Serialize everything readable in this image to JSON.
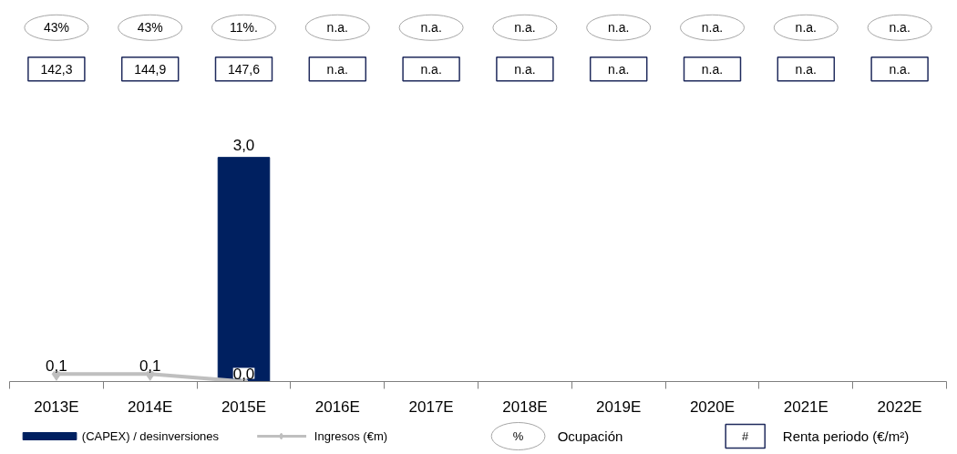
{
  "chart_data": {
    "type": "bar",
    "categories": [
      "2013E",
      "2014E",
      "2015E",
      "2016E",
      "2017E",
      "2018E",
      "2019E",
      "2020E",
      "2021E",
      "2022E"
    ],
    "legend": "bottom",
    "series": [
      {
        "name": "(CAPEX) / desinversiones",
        "color": "#002060",
        "values": [
          null,
          null,
          3.0,
          null,
          null,
          null,
          null,
          null,
          null,
          null
        ],
        "value_labels": [
          null,
          null,
          "3,0",
          null,
          null,
          null,
          null,
          null,
          null,
          null
        ]
      },
      {
        "name": "Ingresos (€m)",
        "type": "line",
        "color": "#bfbfbf",
        "marker": "diamond",
        "values": [
          0.1,
          0.1,
          0.0,
          null,
          null,
          null,
          null,
          null,
          null,
          null
        ],
        "value_labels": [
          "0,1",
          "0,1",
          "0,0",
          null,
          null,
          null,
          null,
          null,
          null,
          null
        ]
      },
      {
        "name": "Ocupación",
        "type": "other",
        "marker": "circle",
        "color": "#a6a6a6",
        "values": [
          null,
          null,
          null,
          null,
          null,
          null,
          null,
          null,
          null,
          null
        ]
      },
      {
        "name": "Renta periodo (€/m²)",
        "type": "other",
        "marker": "square",
        "color": "#1f2a5c",
        "values": [
          null,
          null,
          null,
          null,
          null,
          null,
          null,
          null,
          null,
          null
        ]
      }
    ],
    "annotations": [
      "%",
      "#",
      "43%",
      "43%",
      "11%.",
      "n.a.",
      "n.a.",
      "n.a.",
      "n.a.",
      "n.a.",
      "n.a.",
      "n.a.",
      "142,3",
      "144,9",
      "147,6",
      "n.a.",
      "n.a.",
      "n.a.",
      "n.a.",
      "n.a.",
      "n.a.",
      "n.a."
    ]
  }
}
